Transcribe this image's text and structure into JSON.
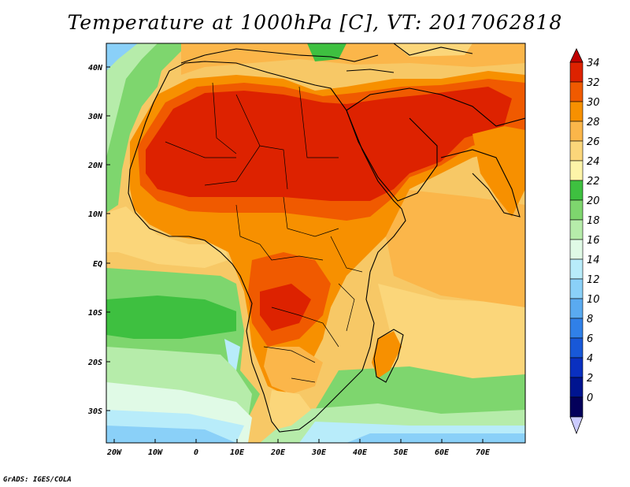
{
  "title": "Temperature at 1000hPa [C], VT: 2017062818",
  "footer": "GrADS: IGES/COLA",
  "lat_labels": [
    "40N",
    "30N",
    "20N",
    "10N",
    "EQ",
    "10S",
    "20S",
    "30S"
  ],
  "lon_labels": [
    "20W",
    "10W",
    "0",
    "10E",
    "20E",
    "30E",
    "40E",
    "50E",
    "60E",
    "70E"
  ],
  "colorbar": {
    "labels": [
      "34",
      "32",
      "30",
      "28",
      "26",
      "24",
      "22",
      "20",
      "18",
      "16",
      "14",
      "12",
      "10",
      "8",
      "6",
      "4",
      "2",
      "0"
    ],
    "colors": [
      "#a40000",
      "#dd2200",
      "#f05a00",
      "#f79000",
      "#fbb64a",
      "#fbd67a",
      "#fdf4a8",
      "#3ec040",
      "#7ed66e",
      "#b6ecaa",
      "#e0fae6",
      "#b8ecfa",
      "#8ad0f8",
      "#5aaaf0",
      "#3080e8",
      "#1858d8",
      "#0a30c0",
      "#001490",
      "#04005a"
    ],
    "over_color": "#c00000",
    "under_color": "#ccccff"
  },
  "map": {
    "projection": "lat-lon",
    "lon_range": [
      -22,
      80
    ],
    "lat_range": [
      -36,
      45
    ],
    "ocean_background": "#f5d97a",
    "variable": "Temperature at 1000hPa",
    "units": "C"
  }
}
